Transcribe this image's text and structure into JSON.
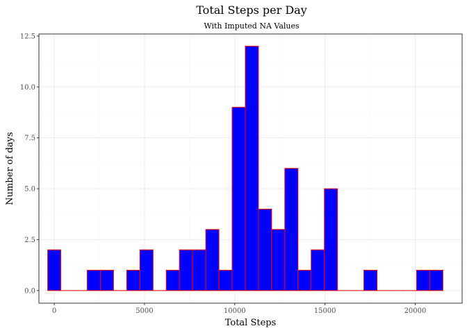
{
  "chart_data": {
    "type": "bar",
    "title": "Total Steps per Day",
    "subtitle": "With Imputed NA Values",
    "xlabel": "Total Steps",
    "ylabel": "Number of days",
    "xlim": [
      -850,
      22600
    ],
    "ylim": [
      -0.62,
      12.6
    ],
    "xticks": [
      0,
      5000,
      10000,
      15000,
      20000
    ],
    "xtick_labels": [
      "0",
      "5000",
      "10000",
      "15000",
      "20000"
    ],
    "yticks": [
      0,
      2.5,
      5,
      7.5,
      10,
      12.5
    ],
    "ytick_labels": [
      "0.0",
      "2.5",
      "5.0",
      "7.5",
      "10.0",
      "12.5"
    ],
    "grid": true,
    "bin_start": -365,
    "bin_width": 730,
    "values": [
      2,
      0,
      0,
      1,
      1,
      0,
      1,
      2,
      0,
      1,
      2,
      2,
      3,
      1,
      9,
      12,
      4,
      3,
      6,
      1,
      2,
      5,
      0,
      0,
      1,
      0,
      0,
      0,
      1,
      1
    ],
    "fill_color": "#0000ff",
    "outline_color": "#ff0000"
  }
}
